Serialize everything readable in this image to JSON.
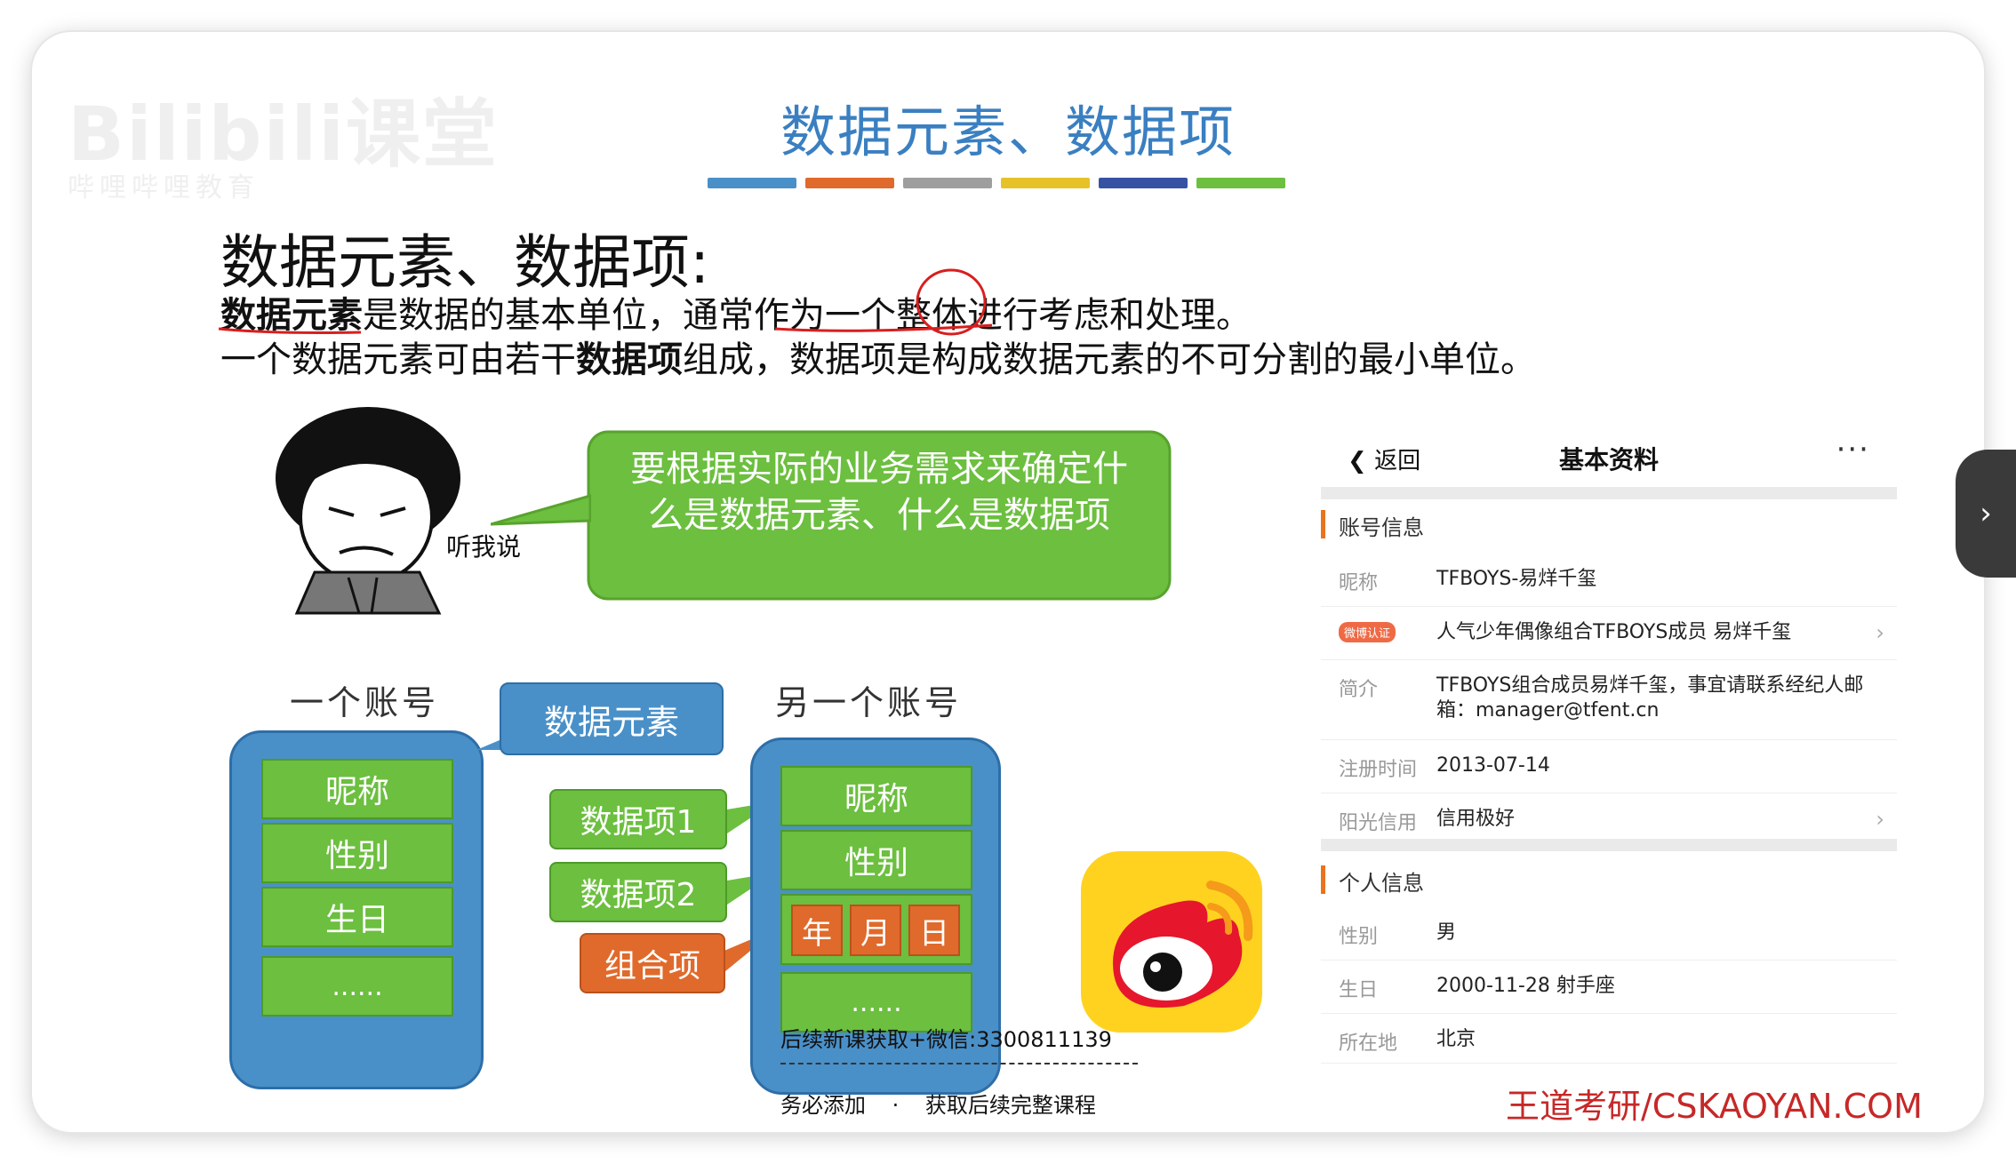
{
  "slide": {
    "title": "数据元素、数据项",
    "heading": "数据元素、数据项:",
    "line1": {
      "bold": "数据元素",
      "text": "是数据的基本单位，通常作为一个整体进行考虑和处理。"
    },
    "line2": {
      "pre": "一个数据元素可由若干",
      "bold": "数据项",
      "post": "组成，数据项是构成数据元素的不可分割的最小单位。"
    },
    "bubble": [
      "要根据实际的业务需求来确定什",
      "么是数据元素、什么是数据项"
    ],
    "listen": "听我说",
    "accent_colors": [
      "#4a90c8",
      "#e06a2b",
      "#9e9e9e",
      "#e6c229",
      "#3552a3",
      "#6cbf3f"
    ]
  },
  "watermark": {
    "logo": "Bilibili课堂",
    "sub": "哔哩哔哩教育"
  },
  "diagram": {
    "account1_label": "一个账号",
    "account2_label": "另一个账号",
    "account1_fields": [
      "昵称",
      "性别",
      "生日",
      "......"
    ],
    "account2_fields": [
      "昵称",
      "性别"
    ],
    "account2_date_parts": [
      "年",
      "月",
      "日"
    ],
    "account2_more": "......",
    "element_tag": "数据元素",
    "item_tags": [
      "数据项1",
      "数据项2"
    ],
    "combo_tag": "组合项"
  },
  "profile": {
    "back_label": "返回",
    "title": "基本资料",
    "more_icon": "more-dots-icon",
    "section1": "账号信息",
    "rows1": [
      {
        "label": "昵称",
        "value": "TFBOYS-易烊千玺"
      },
      {
        "label": "微博认证",
        "value": "人气少年偶像组合TFBOYS成员 易烊千玺"
      },
      {
        "label": "简介",
        "value": "TFBOYS组合成员易烊千玺，事宜请联系经纪人邮箱：manager@tfent.cn"
      },
      {
        "label": "注册时间",
        "value": "2013-07-14"
      },
      {
        "label": "阳光信用",
        "value": "信用极好"
      }
    ],
    "section2": "个人信息",
    "rows2": [
      {
        "label": "性别",
        "value": "男"
      },
      {
        "label": "生日",
        "value": "2000-11-28  射手座"
      },
      {
        "label": "所在地",
        "value": "北京"
      }
    ]
  },
  "footer": {
    "wechat": "后续新课获取+微信:3300811139",
    "note1": "务必添加",
    "note_dot": "·",
    "note2": "获取后续完整课程",
    "brand": "王道考研/CSKAOYAN.COM"
  },
  "player": {
    "next_icon": "chevron-right-icon",
    "next_glyph": "›"
  }
}
